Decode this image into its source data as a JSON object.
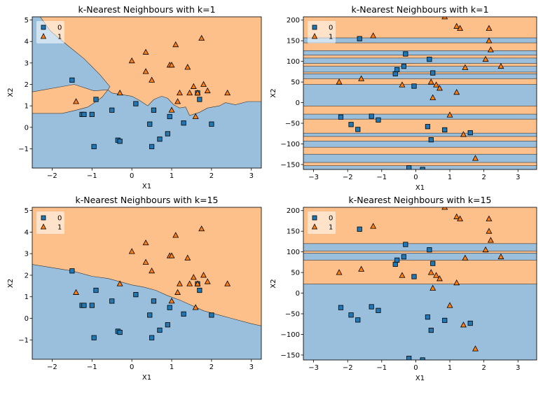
{
  "chart_data": [
    {
      "type": "scatter",
      "title": "k-Nearest Neighbours with k=1",
      "xlabel": "X1",
      "ylabel": "X2",
      "xlim": [
        -2.5,
        3.25
      ],
      "ylim": [
        -1.9,
        5.15
      ],
      "xticks": [
        -2,
        -1,
        0,
        1,
        2,
        3
      ],
      "yticks": [
        -1,
        0,
        1,
        2,
        3,
        4,
        5
      ],
      "legend": "top-left",
      "grid": false,
      "series": [
        {
          "name": "0",
          "marker": "square",
          "color": "#1f77b4",
          "points": [
            [
              -1.5,
              2.2
            ],
            [
              -1.25,
              0.6
            ],
            [
              -1.2,
              0.6
            ],
            [
              -1.0,
              0.6
            ],
            [
              -0.95,
              -0.9
            ],
            [
              -0.9,
              1.3
            ],
            [
              -0.5,
              0.8
            ],
            [
              -0.35,
              -0.6
            ],
            [
              -0.3,
              -0.65
            ],
            [
              0.1,
              1.1
            ],
            [
              0.45,
              0.15
            ],
            [
              0.5,
              -0.9
            ],
            [
              0.55,
              0.8
            ],
            [
              0.7,
              -0.55
            ],
            [
              0.9,
              -0.3
            ],
            [
              0.95,
              0.5
            ],
            [
              1.3,
              0.2
            ],
            [
              1.65,
              1.6
            ],
            [
              1.7,
              1.3
            ],
            [
              2.0,
              0.15
            ]
          ]
        },
        {
          "name": "1",
          "marker": "triangle",
          "color": "#ff7f0e",
          "points": [
            [
              -1.4,
              1.2
            ],
            [
              -0.3,
              1.6
            ],
            [
              0.0,
              3.1
            ],
            [
              0.35,
              3.5
            ],
            [
              0.35,
              2.6
            ],
            [
              0.5,
              2.2
            ],
            [
              0.95,
              2.9
            ],
            [
              1.0,
              2.9
            ],
            [
              1.0,
              0.8
            ],
            [
              1.1,
              3.85
            ],
            [
              1.15,
              1.2
            ],
            [
              1.2,
              1.6
            ],
            [
              1.4,
              2.8
            ],
            [
              1.45,
              1.6
            ],
            [
              1.55,
              1.9
            ],
            [
              1.6,
              0.5
            ],
            [
              1.65,
              1.6
            ],
            [
              1.75,
              4.15
            ],
            [
              1.8,
              2.0
            ],
            [
              1.9,
              1.7
            ],
            [
              2.4,
              1.6
            ]
          ]
        }
      ]
    },
    {
      "type": "scatter",
      "title": "k-Nearest Neighbours with k=1",
      "xlabel": "X1",
      "ylabel": "X2",
      "xlim": [
        -3.3,
        3.55
      ],
      "ylim": [
        -162,
        208
      ],
      "xticks": [
        -3,
        -2,
        -1,
        0,
        1,
        2,
        3
      ],
      "yticks": [
        -150,
        -100,
        -50,
        0,
        50,
        100,
        150,
        200
      ],
      "legend": "top-left",
      "grid": false,
      "series": [
        {
          "name": "0",
          "marker": "square",
          "color": "#1f77b4",
          "points": [
            [
              -2.2,
              -35
            ],
            [
              -1.9,
              -53
            ],
            [
              -1.7,
              -65
            ],
            [
              -1.65,
              155
            ],
            [
              -1.3,
              -33
            ],
            [
              -1.1,
              -42
            ],
            [
              -0.6,
              70
            ],
            [
              -0.55,
              80
            ],
            [
              -0.35,
              88
            ],
            [
              -0.3,
              118
            ],
            [
              -0.2,
              -158
            ],
            [
              -0.05,
              40
            ],
            [
              0.2,
              -162
            ],
            [
              0.35,
              -58
            ],
            [
              0.4,
              105
            ],
            [
              0.45,
              -90
            ],
            [
              0.5,
              72
            ],
            [
              0.85,
              -66
            ],
            [
              1.6,
              -73
            ]
          ]
        },
        {
          "name": "1",
          "marker": "triangle",
          "color": "#ff7f0e",
          "points": [
            [
              -2.25,
              50
            ],
            [
              -1.6,
              58
            ],
            [
              -1.25,
              162
            ],
            [
              -0.4,
              43
            ],
            [
              0.45,
              50
            ],
            [
              0.5,
              12
            ],
            [
              0.6,
              43
            ],
            [
              0.7,
              35
            ],
            [
              0.85,
              208
            ],
            [
              1.0,
              -30
            ],
            [
              1.2,
              25
            ],
            [
              1.2,
              185
            ],
            [
              1.3,
              180
            ],
            [
              1.4,
              -77
            ],
            [
              1.45,
              85
            ],
            [
              1.75,
              -135
            ],
            [
              2.05,
              105
            ],
            [
              2.15,
              180
            ],
            [
              2.15,
              150
            ],
            [
              2.2,
              128
            ],
            [
              2.5,
              88
            ]
          ]
        }
      ]
    },
    {
      "type": "scatter",
      "title": "k-Nearest Neighbours with k=15",
      "xlabel": "X1",
      "ylabel": "X2",
      "xlim": [
        -2.5,
        3.25
      ],
      "ylim": [
        -1.9,
        5.15
      ],
      "xticks": [
        -2,
        -1,
        0,
        1,
        2,
        3
      ],
      "yticks": [
        -1,
        0,
        1,
        2,
        3,
        4,
        5
      ],
      "legend": "top-left",
      "grid": false,
      "series": [
        {
          "name": "0",
          "marker": "square",
          "color": "#1f77b4",
          "points": [
            [
              -1.5,
              2.2
            ],
            [
              -1.25,
              0.6
            ],
            [
              -1.2,
              0.6
            ],
            [
              -1.0,
              0.6
            ],
            [
              -0.95,
              -0.9
            ],
            [
              -0.9,
              1.3
            ],
            [
              -0.5,
              0.8
            ],
            [
              -0.35,
              -0.6
            ],
            [
              -0.3,
              -0.65
            ],
            [
              0.1,
              1.1
            ],
            [
              0.45,
              0.15
            ],
            [
              0.5,
              -0.9
            ],
            [
              0.55,
              0.8
            ],
            [
              0.7,
              -0.55
            ],
            [
              0.9,
              -0.3
            ],
            [
              0.95,
              0.5
            ],
            [
              1.3,
              0.2
            ],
            [
              1.65,
              1.6
            ],
            [
              1.7,
              1.3
            ],
            [
              2.0,
              0.15
            ]
          ]
        },
        {
          "name": "1",
          "marker": "triangle",
          "color": "#ff7f0e",
          "points": [
            [
              -1.4,
              1.2
            ],
            [
              -0.3,
              1.6
            ],
            [
              0.0,
              3.1
            ],
            [
              0.35,
              3.5
            ],
            [
              0.35,
              2.6
            ],
            [
              0.5,
              2.2
            ],
            [
              0.95,
              2.9
            ],
            [
              1.0,
              2.9
            ],
            [
              1.0,
              0.8
            ],
            [
              1.1,
              3.85
            ],
            [
              1.15,
              1.2
            ],
            [
              1.2,
              1.6
            ],
            [
              1.4,
              2.8
            ],
            [
              1.45,
              1.6
            ],
            [
              1.55,
              1.9
            ],
            [
              1.6,
              0.5
            ],
            [
              1.65,
              1.6
            ],
            [
              1.75,
              4.15
            ],
            [
              1.8,
              2.0
            ],
            [
              1.9,
              1.7
            ],
            [
              2.4,
              1.6
            ]
          ]
        }
      ]
    },
    {
      "type": "scatter",
      "title": "k-Nearest Neighbours with k=15",
      "xlabel": "X1",
      "ylabel": "X2",
      "xlim": [
        -3.3,
        3.55
      ],
      "ylim": [
        -162,
        208
      ],
      "xticks": [
        -3,
        -2,
        -1,
        0,
        1,
        2,
        3
      ],
      "yticks": [
        -150,
        -100,
        -50,
        0,
        50,
        100,
        150,
        200
      ],
      "legend": "top-left",
      "grid": false,
      "series": [
        {
          "name": "0",
          "marker": "square",
          "color": "#1f77b4",
          "points": [
            [
              -2.2,
              -35
            ],
            [
              -1.9,
              -53
            ],
            [
              -1.7,
              -65
            ],
            [
              -1.65,
              155
            ],
            [
              -1.3,
              -33
            ],
            [
              -1.1,
              -42
            ],
            [
              -0.6,
              70
            ],
            [
              -0.55,
              80
            ],
            [
              -0.35,
              88
            ],
            [
              -0.3,
              118
            ],
            [
              -0.2,
              -158
            ],
            [
              -0.05,
              40
            ],
            [
              0.2,
              -162
            ],
            [
              0.35,
              -58
            ],
            [
              0.4,
              105
            ],
            [
              0.45,
              -90
            ],
            [
              0.5,
              72
            ],
            [
              0.85,
              -66
            ],
            [
              1.6,
              -73
            ]
          ]
        },
        {
          "name": "1",
          "marker": "triangle",
          "color": "#ff7f0e",
          "points": [
            [
              -2.25,
              50
            ],
            [
              -1.6,
              58
            ],
            [
              -1.25,
              162
            ],
            [
              -0.4,
              43
            ],
            [
              0.45,
              50
            ],
            [
              0.5,
              12
            ],
            [
              0.6,
              43
            ],
            [
              0.7,
              35
            ],
            [
              0.85,
              208
            ],
            [
              1.0,
              -30
            ],
            [
              1.2,
              25
            ],
            [
              1.2,
              185
            ],
            [
              1.3,
              180
            ],
            [
              1.4,
              -77
            ],
            [
              1.45,
              85
            ],
            [
              1.75,
              -135
            ],
            [
              2.05,
              105
            ],
            [
              2.15,
              180
            ],
            [
              2.15,
              150
            ],
            [
              2.2,
              128
            ],
            [
              2.5,
              88
            ]
          ]
        }
      ]
    }
  ],
  "colors": {
    "region_0": "#9abfdd",
    "region_1": "#fdc08b",
    "marker_0": "#1f77b4",
    "marker_1": "#ff7f0e",
    "marker_edge": "#000000"
  }
}
